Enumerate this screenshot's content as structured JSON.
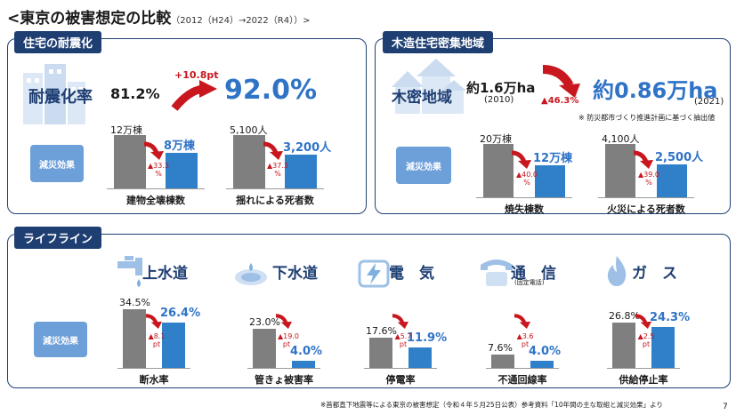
{
  "header": {
    "title": "<東京の被害想定の比較",
    "subtitle": "（2012（H24）→2022（R4））>",
    "page_number": "7",
    "footnote": "※首都直下地震等による東京の被害想定（令和４年５月25日公表）参考資料「10年間の主な取組と減災効果」より"
  },
  "seismic": {
    "tag": "住宅の耐震化",
    "rate_label": "耐震化率",
    "rate_before": "81.2%",
    "delta": "+10.8pt",
    "rate_after": "92.0%",
    "effect_label": "減災効果",
    "charts": [
      {
        "before_label": "12万棟",
        "after_label": "8万棟",
        "change": "▲33.3 %",
        "caption": "建物全壊棟数",
        "before": 120000,
        "after": 80000
      },
      {
        "before_label": "5,100人",
        "after_label": "3,200人",
        "change": "▲37.3 %",
        "caption": "揺れによる死者数",
        "before": 5100,
        "after": 3200
      }
    ]
  },
  "wooden": {
    "tag": "木造住宅密集地域",
    "area_label": "木密地域",
    "area_before": "約1.6万ha",
    "year_before": "(2010)",
    "change": "▲46.3%",
    "area_after": "約0.86万ha",
    "year_after": "(2021)",
    "note": "※ 防災都市づくり推進計画に基づく抽出値",
    "effect_label": "減災効果",
    "charts": [
      {
        "before_label": "20万棟",
        "after_label": "12万棟",
        "change": "▲40.0 %",
        "caption": "焼失棟数",
        "before": 200000,
        "after": 120000
      },
      {
        "before_label": "4,100人",
        "after_label": "2,500人",
        "change": "▲39.0 %",
        "caption": "火災による死者数",
        "before": 4100,
        "after": 2500
      }
    ]
  },
  "lifeline": {
    "tag": "ライフライン",
    "effect_label": "減災効果",
    "items": [
      {
        "name": "上水道",
        "icon": "faucet-icon",
        "before_label": "34.5%",
        "after_label": "26.4%",
        "change": "▲8.1 pt",
        "caption": "断水率",
        "before": 34.5,
        "after": 26.4
      },
      {
        "name": "下水道",
        "icon": "manhole-icon",
        "before_label": "23.0%",
        "after_label": "4.0%",
        "change": "▲19.0 pt",
        "caption": "管きょ被害率",
        "before": 23.0,
        "after": 4.0
      },
      {
        "name": "電　気",
        "icon": "plug-icon",
        "before_label": "17.6%",
        "after_label": "11.9%",
        "change": "▲5.7 pt",
        "caption": "停電率",
        "before": 17.6,
        "after": 11.9
      },
      {
        "name": "通　信",
        "sub": "(固定電話)",
        "icon": "telephone-icon",
        "before_label": "7.6%",
        "after_label": "4.0%",
        "change": "▲3.6 pt",
        "caption": "不通回線率",
        "before": 7.6,
        "after": 4.0
      },
      {
        "name": "ガ　ス",
        "icon": "flame-icon",
        "before_label": "26.8%",
        "after_label": "24.3%",
        "change": "▲2.5 pt",
        "caption": "供給停止率",
        "before": 26.8,
        "after": 24.3
      }
    ]
  },
  "colors": {
    "navy": "#1f3f73",
    "blue": "#2f80c9",
    "gray": "#7f7f7f",
    "red": "#c8171e",
    "effect": "#6d9fd9"
  }
}
